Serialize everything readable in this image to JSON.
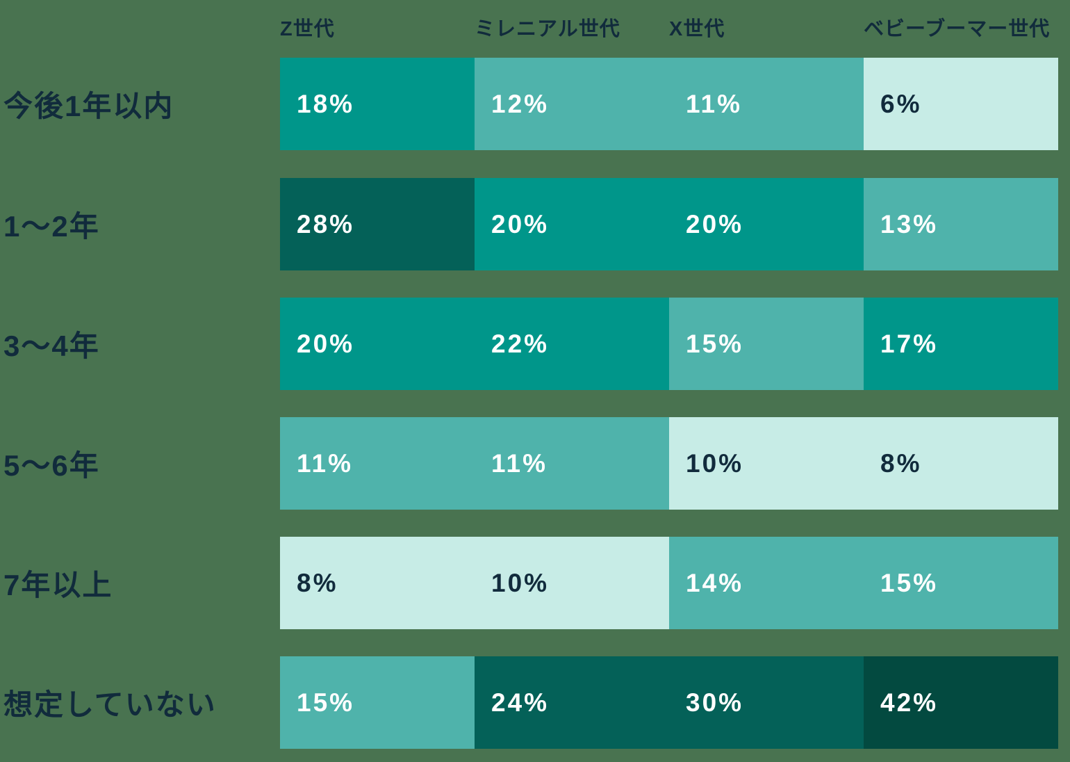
{
  "palette": {
    "bg": "#497350",
    "teal": "#00968A",
    "medteal": "#4FB3AB",
    "mint": "#C7ECE6",
    "dark": "#046158",
    "darkest": "#034A40",
    "navy": "#112B3C",
    "white": "#FFFFFF"
  },
  "chart_data": {
    "type": "heatmap",
    "unit": "%",
    "legend": "none",
    "grid": "off",
    "columns": [
      "Z世代",
      "ミレニアル世代",
      "X世代",
      "ベビーブーマー世代"
    ],
    "rows": [
      {
        "label": "今後1年以内",
        "values": [
          18,
          12,
          11,
          6
        ],
        "cells": [
          {
            "value": 18,
            "text": "18%",
            "tone": "teal"
          },
          {
            "value": 12,
            "text": "12%",
            "tone": "medteal"
          },
          {
            "value": 11,
            "text": "11%",
            "tone": "medteal"
          },
          {
            "value": 6,
            "text": "6%",
            "tone": "mint"
          }
        ]
      },
      {
        "label": "1〜2年",
        "values": [
          28,
          20,
          20,
          13
        ],
        "cells": [
          {
            "value": 28,
            "text": "28%",
            "tone": "dark"
          },
          {
            "value": 20,
            "text": "20%",
            "tone": "teal"
          },
          {
            "value": 20,
            "text": "20%",
            "tone": "teal"
          },
          {
            "value": 13,
            "text": "13%",
            "tone": "medteal"
          }
        ]
      },
      {
        "label": "3〜4年",
        "values": [
          20,
          22,
          15,
          17
        ],
        "cells": [
          {
            "value": 20,
            "text": "20%",
            "tone": "teal"
          },
          {
            "value": 22,
            "text": "22%",
            "tone": "teal"
          },
          {
            "value": 15,
            "text": "15%",
            "tone": "medteal"
          },
          {
            "value": 17,
            "text": "17%",
            "tone": "teal"
          }
        ]
      },
      {
        "label": "5〜6年",
        "values": [
          11,
          11,
          10,
          8
        ],
        "cells": [
          {
            "value": 11,
            "text": "11%",
            "tone": "medteal"
          },
          {
            "value": 11,
            "text": "11%",
            "tone": "medteal"
          },
          {
            "value": 10,
            "text": "10%",
            "tone": "mint"
          },
          {
            "value": 8,
            "text": "8%",
            "tone": "mint"
          }
        ]
      },
      {
        "label": "7年以上",
        "values": [
          8,
          10,
          14,
          15
        ],
        "cells": [
          {
            "value": 8,
            "text": "8%",
            "tone": "mint"
          },
          {
            "value": 10,
            "text": "10%",
            "tone": "mint"
          },
          {
            "value": 14,
            "text": "14%",
            "tone": "medteal"
          },
          {
            "value": 15,
            "text": "15%",
            "tone": "medteal"
          }
        ]
      },
      {
        "label": "想定していない",
        "values": [
          15,
          24,
          30,
          42
        ],
        "cells": [
          {
            "value": 15,
            "text": "15%",
            "tone": "medteal"
          },
          {
            "value": 24,
            "text": "24%",
            "tone": "dark"
          },
          {
            "value": 30,
            "text": "30%",
            "tone": "dark"
          },
          {
            "value": 42,
            "text": "42%",
            "tone": "darkest"
          }
        ]
      }
    ]
  }
}
